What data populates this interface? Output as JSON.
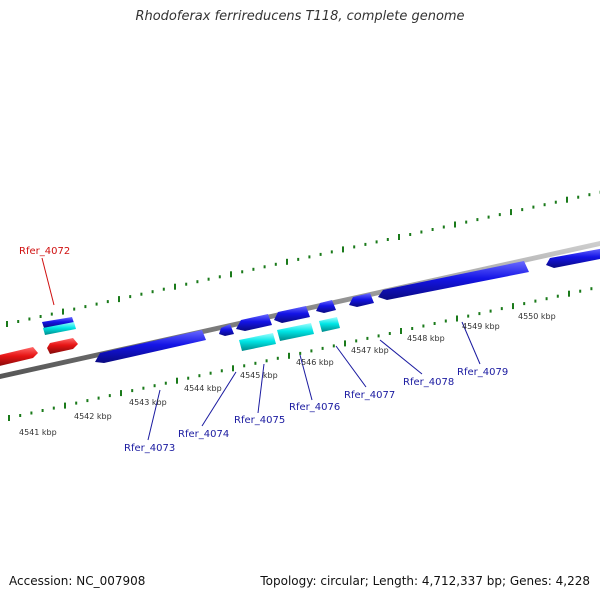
{
  "title": "Rhodoferax ferrireducens T118, complete genome",
  "footer": {
    "accession": "Accession: NC_007908",
    "summary": "Topology: circular; Length: 4,712,337 bp; Genes: 4,228"
  },
  "colors": {
    "forward_gene": "#1414e6",
    "reverse_gene": "#e61414",
    "rna_gene": "#00e6e6",
    "backbone": "#888888",
    "ticks": "#1a7a1a",
    "label_blue": "#1a1aa0",
    "label_red": "#d01010"
  },
  "scale_labels": [
    "4541 kbp",
    "4542 kbp",
    "4543 kbp",
    "4544 kbp",
    "4545 kbp",
    "4546 kbp",
    "4547 kbp",
    "4548 kbp",
    "4549 kbp",
    "4550 kbp"
  ],
  "gene_labels": [
    {
      "text": "Rfer_4072",
      "strand": "reverse"
    },
    {
      "text": "Rfer_4073",
      "strand": "forward"
    },
    {
      "text": "Rfer_4074",
      "strand": "forward"
    },
    {
      "text": "Rfer_4075",
      "strand": "forward"
    },
    {
      "text": "Rfer_4076",
      "strand": "forward"
    },
    {
      "text": "Rfer_4077",
      "strand": "forward"
    },
    {
      "text": "Rfer_4078",
      "strand": "forward"
    },
    {
      "text": "Rfer_4079",
      "strand": "forward"
    }
  ]
}
